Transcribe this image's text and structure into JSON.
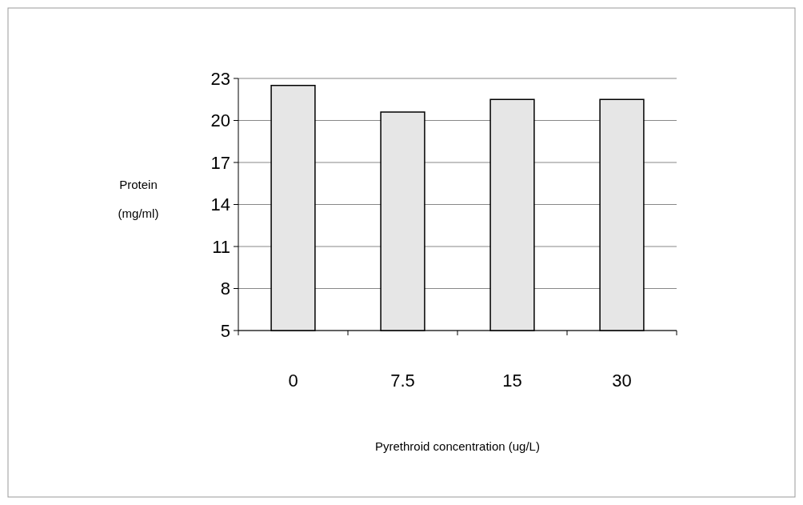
{
  "chart_data": {
    "type": "bar",
    "xlabel": "Pyrethroid concentration (ug/L)",
    "ylabel": "Protein (mg/ml)",
    "categories": [
      "0",
      "7.5",
      "15",
      "30"
    ],
    "values": [
      22.5,
      20.6,
      21.5,
      21.5
    ],
    "color": "#e6e6e6",
    "ylim": [
      5,
      23
    ],
    "yticks": [
      5,
      8,
      11,
      14,
      17,
      20,
      23
    ],
    "grid": "y"
  }
}
